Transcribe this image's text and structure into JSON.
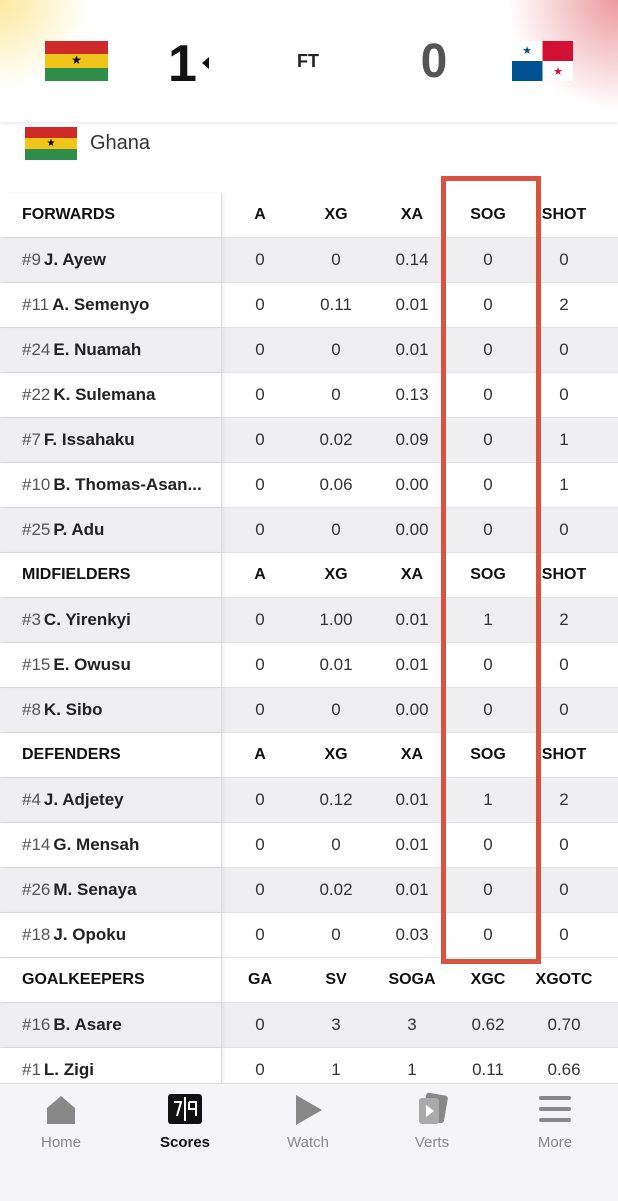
{
  "header": {
    "home_score": "1",
    "status": "FT",
    "away_score": "0"
  },
  "team": {
    "name": "Ghana"
  },
  "table": {
    "sections": [
      {
        "header": [
          "FORWARDS",
          "A",
          "XG",
          "XA",
          "SOG",
          "SHOT"
        ],
        "rows": [
          {
            "number": "#9",
            "name": "J. Ayew",
            "stats": [
              "0",
              "0",
              "0.14",
              "0",
              "0"
            ]
          },
          {
            "number": "#11",
            "name": "A. Semenyo",
            "stats": [
              "0",
              "0.11",
              "0.01",
              "0",
              "2"
            ]
          },
          {
            "number": "#24",
            "name": "E. Nuamah",
            "stats": [
              "0",
              "0",
              "0.01",
              "0",
              "0"
            ]
          },
          {
            "number": "#22",
            "name": "K. Sulemana",
            "stats": [
              "0",
              "0",
              "0.13",
              "0",
              "0"
            ]
          },
          {
            "number": "#7",
            "name": "F. Issahaku",
            "stats": [
              "0",
              "0.02",
              "0.09",
              "0",
              "1"
            ]
          },
          {
            "number": "#10",
            "name": "B. Thomas-Asan...",
            "stats": [
              "0",
              "0.06",
              "0.00",
              "0",
              "1"
            ]
          },
          {
            "number": "#25",
            "name": "P. Adu",
            "stats": [
              "0",
              "0",
              "0.00",
              "0",
              "0"
            ]
          }
        ]
      },
      {
        "header": [
          "MIDFIELDERS",
          "A",
          "XG",
          "XA",
          "SOG",
          "SHOT"
        ],
        "rows": [
          {
            "number": "#3",
            "name": "C. Yirenkyi",
            "stats": [
              "0",
              "1.00",
              "0.01",
              "1",
              "2"
            ]
          },
          {
            "number": "#15",
            "name": "E. Owusu",
            "stats": [
              "0",
              "0.01",
              "0.01",
              "0",
              "0"
            ]
          },
          {
            "number": "#8",
            "name": "K. Sibo",
            "stats": [
              "0",
              "0",
              "0.00",
              "0",
              "0"
            ]
          }
        ]
      },
      {
        "header": [
          "DEFENDERS",
          "A",
          "XG",
          "XA",
          "SOG",
          "SHOT"
        ],
        "rows": [
          {
            "number": "#4",
            "name": "J. Adjetey",
            "stats": [
              "0",
              "0.12",
              "0.01",
              "1",
              "2"
            ]
          },
          {
            "number": "#14",
            "name": "G. Mensah",
            "stats": [
              "0",
              "0",
              "0.01",
              "0",
              "0"
            ]
          },
          {
            "number": "#26",
            "name": "M. Senaya",
            "stats": [
              "0",
              "0.02",
              "0.01",
              "0",
              "0"
            ]
          },
          {
            "number": "#18",
            "name": "J. Opoku",
            "stats": [
              "0",
              "0",
              "0.03",
              "0",
              "0"
            ]
          }
        ]
      },
      {
        "header": [
          "GOALKEEPERS",
          "GA",
          "SV",
          "SOGA",
          "XGC",
          "XGOTC"
        ],
        "rows": [
          {
            "number": "#16",
            "name": "B. Asare",
            "stats": [
              "0",
              "3",
              "3",
              "0.62",
              "0.70"
            ]
          },
          {
            "number": "#1",
            "name": "L. Zigi",
            "stats": [
              "0",
              "1",
              "1",
              "0.11",
              "0.66"
            ]
          }
        ]
      }
    ]
  },
  "nav": [
    "Home",
    "Scores",
    "Watch",
    "Verts",
    "More"
  ]
}
